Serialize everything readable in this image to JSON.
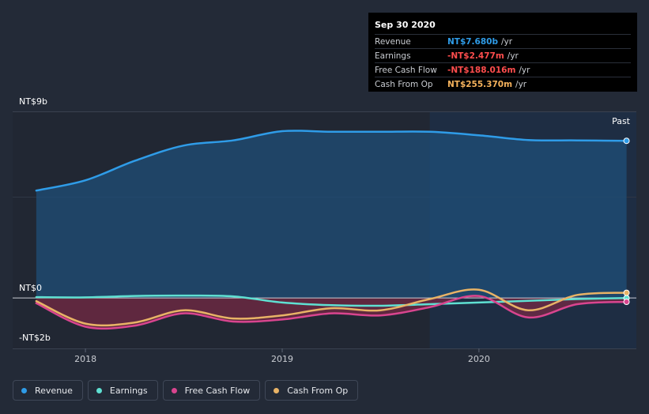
{
  "tooltip": {
    "date": "Sep 30 2020",
    "rows": [
      {
        "label": "Revenue",
        "value": "NT$7.680b",
        "unit": "/yr",
        "color": "#2f9ce8"
      },
      {
        "label": "Earnings",
        "value": "-NT$2.477m",
        "unit": "/yr",
        "color": "#ff4d4d"
      },
      {
        "label": "Free Cash Flow",
        "value": "-NT$188.016m",
        "unit": "/yr",
        "color": "#ff4d4d"
      },
      {
        "label": "Cash From Op",
        "value": "NT$255.370m",
        "unit": "/yr",
        "color": "#f5b25c"
      }
    ]
  },
  "legend": [
    {
      "label": "Revenue",
      "color": "#2f9ce8"
    },
    {
      "label": "Earnings",
      "color": "#5fe0d2"
    },
    {
      "label": "Free Cash Flow",
      "color": "#d9458f"
    },
    {
      "label": "Cash From Op",
      "color": "#e8b366"
    }
  ],
  "chart_data": {
    "type": "area",
    "past_label": "Past",
    "currency_unit": "NT$ billions",
    "ylim": [
      -2,
      9
    ],
    "y_tick_labels": [
      {
        "value": 9,
        "label": "NT$9b"
      },
      {
        "value": 0,
        "label": "NT$0"
      },
      {
        "value": -2,
        "label": "-NT$2b"
      }
    ],
    "x_tick_labels": [
      {
        "value": 2018.0,
        "label": "2018"
      },
      {
        "value": 2019.0,
        "label": "2019"
      },
      {
        "value": 2020.0,
        "label": "2020"
      }
    ],
    "xlim": [
      2017.63,
      2020.8
    ],
    "past_start": 2019.75,
    "series": [
      {
        "name": "Revenue",
        "color": "#2f9ce8",
        "fill": true,
        "x": [
          2017.75,
          2018.0,
          2018.25,
          2018.5,
          2018.75,
          2019.0,
          2019.25,
          2019.5,
          2019.75,
          2020.0,
          2020.25,
          2020.5,
          2020.75
        ],
        "y": [
          5.25,
          5.75,
          6.7,
          7.45,
          7.7,
          8.15,
          8.12,
          8.12,
          8.12,
          7.95,
          7.72,
          7.7,
          7.68
        ]
      },
      {
        "name": "Earnings",
        "color": "#5fe0d2",
        "fill": false,
        "x": [
          2017.75,
          2018.0,
          2018.25,
          2018.5,
          2018.75,
          2019.0,
          2019.25,
          2019.5,
          2019.75,
          2020.0,
          2020.25,
          2020.5,
          2020.75
        ],
        "y": [
          0.04,
          0.03,
          0.1,
          0.12,
          0.08,
          -0.22,
          -0.35,
          -0.38,
          -0.3,
          -0.22,
          -0.14,
          -0.05,
          -0.002
        ]
      },
      {
        "name": "Free Cash Flow",
        "color": "#d9458f",
        "fill": true,
        "x": [
          2017.75,
          2018.0,
          2018.25,
          2018.5,
          2018.75,
          2019.0,
          2019.25,
          2019.5,
          2019.75,
          2020.0,
          2020.25,
          2020.5,
          2020.75
        ],
        "y": [
          -0.25,
          -1.4,
          -1.35,
          -0.75,
          -1.15,
          -1.05,
          -0.75,
          -0.85,
          -0.45,
          0.1,
          -0.95,
          -0.3,
          -0.188
        ]
      },
      {
        "name": "Cash From Op",
        "color": "#e8b366",
        "fill": false,
        "x": [
          2017.75,
          2018.0,
          2018.25,
          2018.5,
          2018.75,
          2019.0,
          2019.25,
          2019.5,
          2019.75,
          2020.0,
          2020.25,
          2020.5,
          2020.75
        ],
        "y": [
          -0.15,
          -1.25,
          -1.2,
          -0.6,
          -1.0,
          -0.85,
          -0.5,
          -0.6,
          -0.05,
          0.4,
          -0.6,
          0.15,
          0.255
        ]
      }
    ]
  }
}
